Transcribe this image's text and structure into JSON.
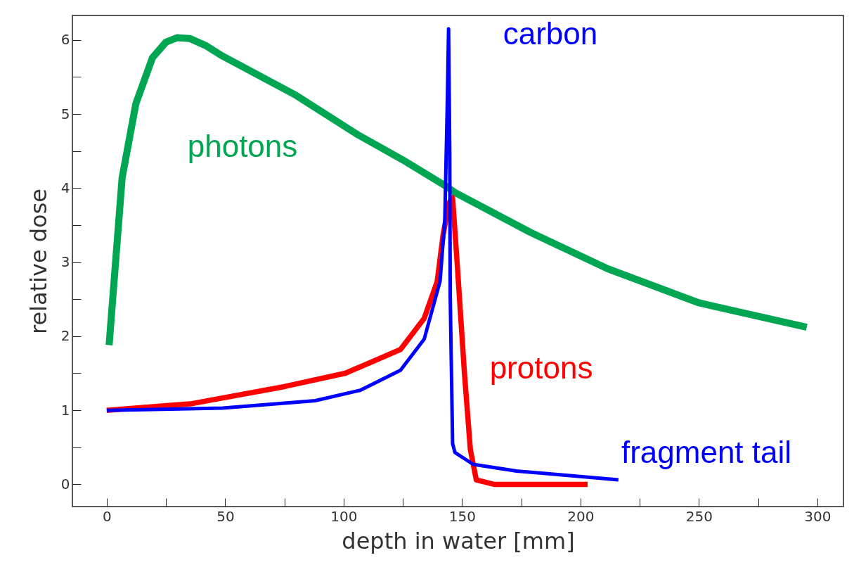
{
  "chart_data": {
    "type": "line",
    "xlabel": "depth in water [mm]",
    "ylabel": "relative dose",
    "xlim": [
      -14.5,
      311
    ],
    "ylim": [
      -0.3,
      6.33
    ],
    "xticks": [
      0,
      {
        "value": 25,
        "label": null
      },
      50,
      {
        "value": 75,
        "label": null
      },
      100,
      {
        "value": 125,
        "label": null
      },
      150,
      {
        "value": 175,
        "label": null
      },
      200,
      {
        "value": 225,
        "label": null
      },
      250,
      {
        "value": 275,
        "label": null
      },
      300
    ],
    "yticks": [
      0,
      {
        "value": 0.5,
        "label": null
      },
      1,
      {
        "value": 1.5,
        "label": null
      },
      2,
      {
        "value": 2.5,
        "label": null
      },
      3,
      {
        "value": 3.5,
        "label": null
      },
      4,
      {
        "value": 4.5,
        "label": null
      },
      5,
      {
        "value": 5.5,
        "label": null
      },
      6
    ],
    "series": [
      {
        "name": "photons",
        "color": "#00a651",
        "x": [
          1,
          6.5,
          12.3,
          19.3,
          25,
          29.7,
          35,
          42,
          49,
          80,
          106,
          125,
          143.5,
          147,
          179,
          211.5,
          250,
          295.5
        ],
        "values": [
          1.88,
          4.14,
          5.14,
          5.76,
          5.97,
          6.03,
          6.02,
          5.92,
          5.78,
          5.25,
          4.72,
          4.38,
          4.02,
          3.94,
          3.4,
          2.91,
          2.45,
          2.12
        ]
      },
      {
        "name": "protons",
        "color": "#ff0000",
        "x": [
          0,
          36,
          75,
          100.7,
          124,
          134,
          139.5,
          142,
          144.5,
          146,
          148,
          151,
          153.5,
          156,
          163.5,
          203
        ],
        "values": [
          1,
          1.09,
          1.32,
          1.5,
          1.82,
          2.24,
          2.74,
          3.37,
          3.8,
          3.87,
          2.95,
          1.5,
          0.47,
          0.06,
          0,
          0
        ]
      },
      {
        "name": "carbon",
        "color": "#0000ff",
        "x": [
          0,
          49,
          88,
          107,
          124,
          134,
          140.7,
          142.7,
          143.8,
          144.3,
          144.8,
          145,
          146,
          147,
          154.7,
          173,
          216
        ],
        "values": [
          1,
          1.03,
          1.13,
          1.27,
          1.54,
          1.96,
          2.74,
          3.56,
          5.2,
          6.15,
          4.5,
          2.54,
          0.55,
          0.43,
          0.27,
          0.18,
          0.06
        ]
      }
    ],
    "annotations": [
      "fragment tail"
    ]
  }
}
